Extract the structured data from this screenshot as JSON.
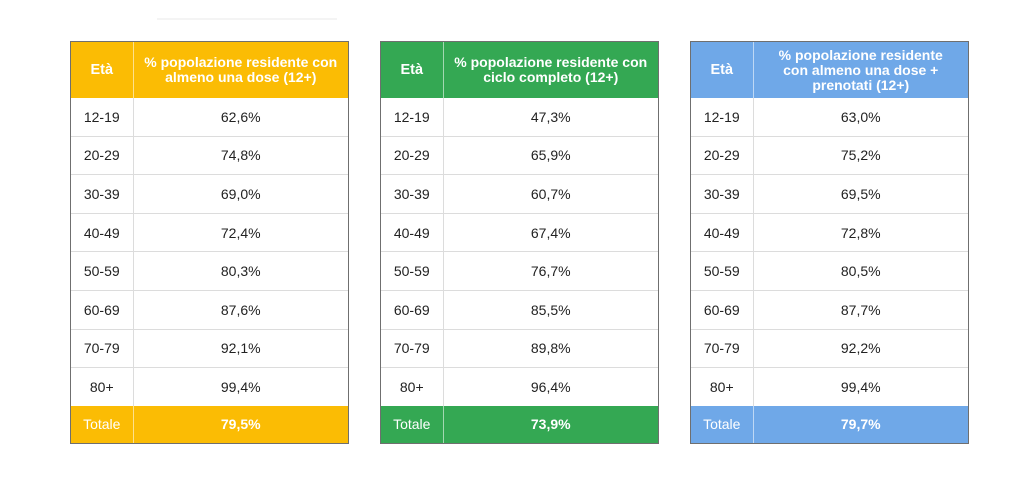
{
  "colors": {
    "orange": "#fbbc04",
    "green": "#34a853",
    "blue": "#6fa8e8"
  },
  "tables": [
    {
      "header": {
        "age": "Età",
        "metric": "% popolazione residente con almeno una dose (12+)"
      },
      "rows": [
        {
          "age": "12-19",
          "value": "62,6%"
        },
        {
          "age": "20-29",
          "value": "74,8%"
        },
        {
          "age": "30-39",
          "value": "69,0%"
        },
        {
          "age": "40-49",
          "value": "72,4%"
        },
        {
          "age": "50-59",
          "value": "80,3%"
        },
        {
          "age": "60-69",
          "value": "87,6%"
        },
        {
          "age": "70-79",
          "value": "92,1%"
        },
        {
          "age": "80+",
          "value": "99,4%"
        }
      ],
      "total": {
        "label": "Totale",
        "value": "79,5%"
      }
    },
    {
      "header": {
        "age": "Età",
        "metric": "% popolazione residente con ciclo completo (12+)"
      },
      "rows": [
        {
          "age": "12-19",
          "value": "47,3%"
        },
        {
          "age": "20-29",
          "value": "65,9%"
        },
        {
          "age": "30-39",
          "value": "60,7%"
        },
        {
          "age": "40-49",
          "value": "67,4%"
        },
        {
          "age": "50-59",
          "value": "76,7%"
        },
        {
          "age": "60-69",
          "value": "85,5%"
        },
        {
          "age": "70-79",
          "value": "89,8%"
        },
        {
          "age": "80+",
          "value": "96,4%"
        }
      ],
      "total": {
        "label": "Totale",
        "value": "73,9%"
      }
    },
    {
      "header": {
        "age": "Età",
        "metric": "% popolazione residente con almeno una dose + prenotati (12+)"
      },
      "rows": [
        {
          "age": "12-19",
          "value": "63,0%"
        },
        {
          "age": "20-29",
          "value": "75,2%"
        },
        {
          "age": "30-39",
          "value": "69,5%"
        },
        {
          "age": "40-49",
          "value": "72,8%"
        },
        {
          "age": "50-59",
          "value": "80,5%"
        },
        {
          "age": "60-69",
          "value": "87,7%"
        },
        {
          "age": "70-79",
          "value": "92,2%"
        },
        {
          "age": "80+",
          "value": "99,4%"
        }
      ],
      "total": {
        "label": "Totale",
        "value": "79,7%"
      }
    }
  ]
}
